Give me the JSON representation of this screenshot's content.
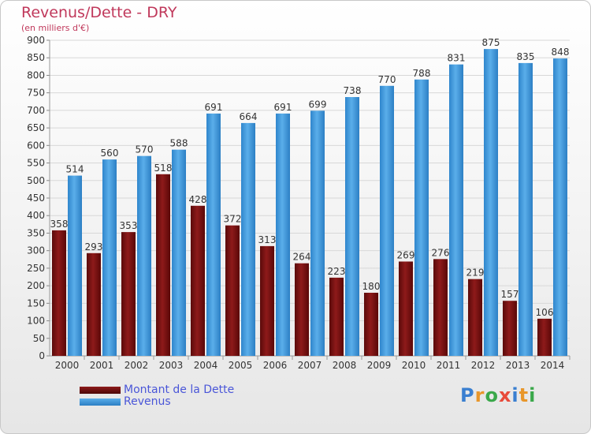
{
  "title": "Revenus/Dette - DRY",
  "subtitle": "(en milliers d'€)",
  "logo": {
    "text": "Proxiti",
    "letter_colors": [
      "#3a7fd0",
      "#e8962a",
      "#3aa84a",
      "#e84a3a",
      "#3a7fd0",
      "#e8962a",
      "#3aa84a"
    ]
  },
  "colors": {
    "dette": "#7a1010",
    "revenus": "#3b94da",
    "axis_text": "#333333"
  },
  "chart_data": {
    "type": "bar",
    "categories": [
      "2000",
      "2001",
      "2002",
      "2003",
      "2004",
      "2005",
      "2006",
      "2007",
      "2008",
      "2009",
      "2010",
      "2011",
      "2012",
      "2013",
      "2014"
    ],
    "series": [
      {
        "name": "Montant de la Dette",
        "values": [
          358,
          293,
          353,
          518,
          428,
          372,
          313,
          264,
          223,
          180,
          269,
          276,
          219,
          157,
          106
        ]
      },
      {
        "name": "Revenus",
        "values": [
          514,
          560,
          570,
          588,
          691,
          664,
          691,
          699,
          738,
          770,
          788,
          831,
          875,
          835,
          848
        ]
      }
    ],
    "ylim": [
      0,
      900
    ],
    "ytick_step": 50,
    "grid": true,
    "legend": "bottom-left"
  }
}
